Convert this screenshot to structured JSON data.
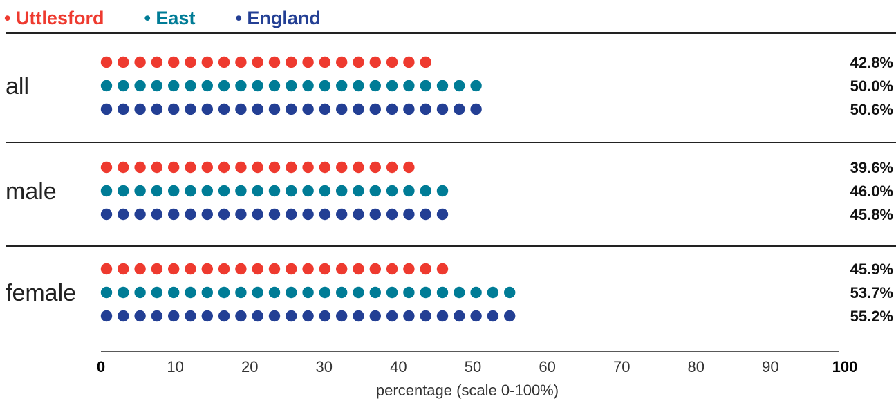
{
  "chart_data": {
    "type": "dot-bar",
    "xlabel": "percentage (scale 0-100%)",
    "xlim": [
      0,
      100
    ],
    "ticks": [
      "0",
      "10",
      "20",
      "30",
      "40",
      "50",
      "60",
      "70",
      "80",
      "90",
      "100"
    ],
    "bold_ticks": [
      "0",
      "100"
    ],
    "legend_position": "top-left",
    "series": [
      {
        "name": "Uttlesford",
        "color": "#ee3a2f"
      },
      {
        "name": "East",
        "color": "#007c96"
      },
      {
        "name": "England",
        "color": "#233f94"
      }
    ],
    "groups": [
      {
        "label": "all",
        "values": [
          42.8,
          50.0,
          50.6
        ],
        "value_labels": [
          "42.8%",
          "50.0%",
          "50.6%"
        ]
      },
      {
        "label": "male",
        "values": [
          39.6,
          46.0,
          45.8
        ],
        "value_labels": [
          "39.6%",
          "46.0%",
          "45.8%"
        ]
      },
      {
        "label": "female",
        "values": [
          45.9,
          53.7,
          55.2
        ],
        "value_labels": [
          "45.9%",
          "53.7%",
          "55.2%"
        ]
      }
    ]
  }
}
